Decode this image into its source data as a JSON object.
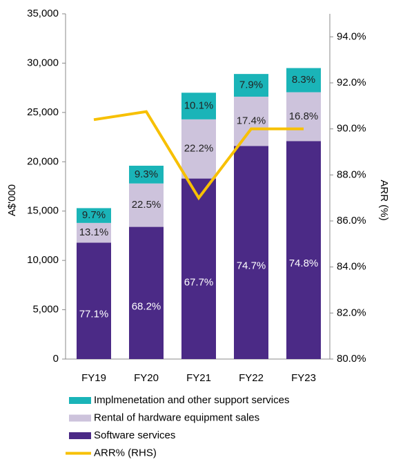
{
  "chart_data": {
    "type": "bar",
    "stacked": true,
    "categories": [
      "FY19",
      "FY20",
      "FY21",
      "FY22",
      "FY23"
    ],
    "ylabel": "A$'000",
    "y2label": "ARR (%)",
    "ylim": [
      0,
      35000
    ],
    "yticks": [
      {
        "value": 0,
        "label": "0"
      },
      {
        "value": 5000,
        "label": "5,000"
      },
      {
        "value": 10000,
        "label": "10,000"
      },
      {
        "value": 15000,
        "label": "15,000"
      },
      {
        "value": 20000,
        "label": "20,000"
      },
      {
        "value": 25000,
        "label": "25,000"
      },
      {
        "value": 30000,
        "label": "30,000"
      },
      {
        "value": 35000,
        "label": "35,000"
      }
    ],
    "y2lim": [
      80,
      95
    ],
    "y2ticks": [
      {
        "value": 80,
        "label": "80.0%"
      },
      {
        "value": 82,
        "label": "82.0%"
      },
      {
        "value": 84,
        "label": "84.0%"
      },
      {
        "value": 86,
        "label": "86.0%"
      },
      {
        "value": 88,
        "label": "88.0%"
      },
      {
        "value": 90,
        "label": "90.0%"
      },
      {
        "value": 92,
        "label": "92.0%"
      },
      {
        "value": 94,
        "label": "94.0%"
      }
    ],
    "series": [
      {
        "name": "Software services",
        "color": "#4b2a86",
        "values": [
          11800,
          13400,
          18300,
          21600,
          22100
        ],
        "segment_labels": [
          "77.1%",
          "68.2%",
          "67.7%",
          "74.7%",
          "74.8%"
        ]
      },
      {
        "name": "Rental of hardware equipment sales",
        "color": "#cdc3dc",
        "values": [
          2000,
          4400,
          6000,
          5000,
          4950
        ],
        "segment_labels": [
          "13.1%",
          "22.5%",
          "22.2%",
          "17.4%",
          "16.8%"
        ]
      },
      {
        "name": "Implmenetation and other support services",
        "color": "#1ab4b8",
        "values": [
          1500,
          1800,
          2700,
          2300,
          2450
        ],
        "segment_labels": [
          "9.7%",
          "9.3%",
          "10.1%",
          "7.9%",
          "8.3%"
        ]
      },
      {
        "name": "ARR% (RHS)",
        "color": "#f7c000",
        "type": "line",
        "axis": "y2",
        "values": [
          90.4,
          90.75,
          87.0,
          90.0,
          90.0
        ]
      }
    ]
  }
}
